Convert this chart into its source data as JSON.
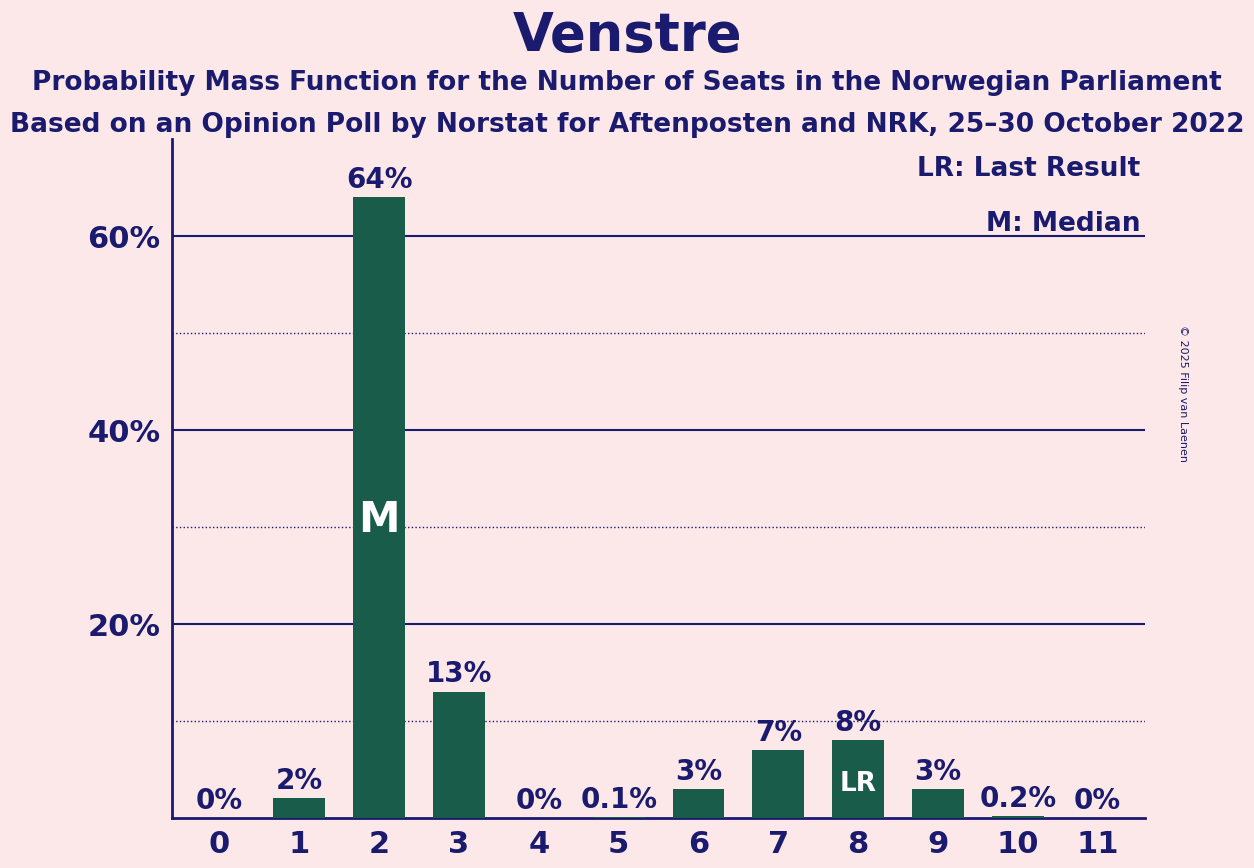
{
  "title": "Venstre",
  "subtitle1": "Probability Mass Function for the Number of Seats in the Norwegian Parliament",
  "subtitle2": "Based on an Opinion Poll by Norstat for Aftenposten and NRK, 25–30 October 2022",
  "copyright": "© 2025 Filip van Laenen",
  "categories": [
    0,
    1,
    2,
    3,
    4,
    5,
    6,
    7,
    8,
    9,
    10,
    11
  ],
  "values": [
    0.0,
    2.0,
    64.0,
    13.0,
    0.0,
    0.1,
    3.0,
    7.0,
    8.0,
    3.0,
    0.2,
    0.0
  ],
  "labels": [
    "0%",
    "2%",
    "64%",
    "13%",
    "0%",
    "0.1%",
    "3%",
    "7%",
    "8%",
    "3%",
    "0.2%",
    "0%"
  ],
  "bar_color": "#1a5c4a",
  "background_color": "#fce8e8",
  "text_color": "#1a1a6e",
  "median_bar": 2,
  "lr_bar": 8,
  "legend_lr": "LR: Last Result",
  "legend_m": "M: Median",
  "ylim": [
    0,
    70
  ],
  "solid_grid": [
    20,
    40,
    60
  ],
  "dotted_grid": [
    10,
    30,
    50
  ],
  "title_fontsize": 38,
  "subtitle_fontsize": 19,
  "axis_fontsize": 22,
  "bar_label_fontsize": 20,
  "legend_fontsize": 19,
  "copyright_fontsize": 8,
  "bar_width": 0.65
}
